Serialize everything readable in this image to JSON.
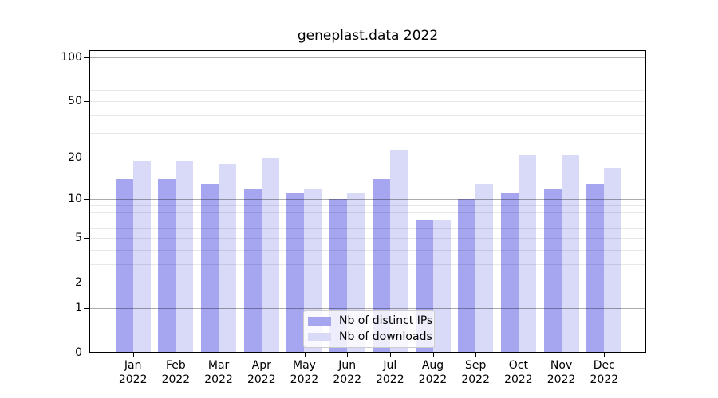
{
  "chart_data": {
    "type": "bar",
    "title": "geneplast.data 2022",
    "categories": [
      "Jan",
      "Feb",
      "Mar",
      "Apr",
      "May",
      "Jun",
      "Jul",
      "Aug",
      "Sep",
      "Oct",
      "Nov",
      "Dec"
    ],
    "x_tick_line2": "2022",
    "series": [
      {
        "name": "Nb of distinct IPs",
        "color": "#a5a5f0",
        "values": [
          14,
          14,
          13,
          12,
          11,
          10,
          14,
          7,
          10,
          11,
          12,
          13
        ]
      },
      {
        "name": "Nb of downloads",
        "color": "#d9d9f8",
        "values": [
          19,
          19,
          18,
          20,
          12,
          11,
          23,
          7,
          13,
          21,
          21,
          17
        ]
      }
    ],
    "y_axis": {
      "scale": "log1p",
      "tick_labels": [
        100,
        50,
        20,
        10,
        5,
        2,
        1,
        0
      ],
      "major_gridlines": [
        1,
        10,
        100
      ],
      "minor_gridlines": [
        2,
        3,
        4,
        5,
        6,
        7,
        8,
        9,
        20,
        30,
        40,
        50,
        60,
        70,
        80,
        90
      ],
      "top_value": 112
    },
    "legend": {
      "entries": [
        "Nb of distinct IPs",
        "Nb of downloads"
      ],
      "position": "bottom-center"
    },
    "colors": {
      "major_grid": "rgba(0,0,0,0.33)",
      "minor_grid": "rgba(0,0,0,0.09)",
      "spine": "#000000",
      "background": "#ffffff",
      "text": "#000000"
    }
  }
}
